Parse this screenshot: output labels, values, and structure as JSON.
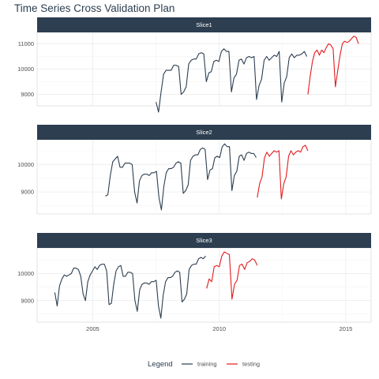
{
  "title": "Time Series Cross Validation Plan",
  "legend": {
    "title": "Legend",
    "items": [
      "training",
      "testing"
    ]
  },
  "colors": {
    "training": "#2c3e50",
    "testing": "#e31a1c",
    "strip": "#2c3e50",
    "grid": "#ebebeb"
  },
  "chart_data": [
    {
      "type": "line",
      "panel": "Slice1",
      "xlim": [
        2002.8,
        2016.0
      ],
      "ylim": [
        8550,
        11450
      ],
      "yticks": [
        9000,
        10000,
        11000
      ],
      "series": [
        {
          "name": "training",
          "x_start": 2007.5,
          "x_end": 2013.46,
          "values": [
            8700,
            8300,
            9100,
            9800,
            9950,
            9950,
            9950,
            10150,
            10150,
            10100,
            9000,
            9100,
            9300,
            10200,
            10350,
            10400,
            10400,
            10600,
            10650,
            10600,
            9500,
            9850,
            9900,
            10300,
            10350,
            10300,
            10700,
            10800,
            10700,
            10700,
            9100,
            9650,
            9800,
            10350,
            10400,
            10200,
            10450,
            10500,
            10450,
            10500,
            8800,
            9350,
            9600,
            10350,
            10500,
            10350,
            10450,
            10550,
            10500,
            10700,
            8700,
            9450,
            9700,
            10450,
            10600,
            10450,
            10550,
            10550,
            10600,
            10700,
            10500
          ]
        },
        {
          "name": "testing",
          "x_start": 2013.5,
          "x_end": 2015.5,
          "values": [
            9000,
            9700,
            10300,
            10650,
            10750,
            10550,
            10750,
            10650,
            10850,
            11000,
            10950,
            10800,
            9300,
            9950,
            10550,
            11000,
            11100,
            11050,
            11100,
            11200,
            11300,
            11250,
            11000
          ]
        }
      ]
    },
    {
      "type": "line",
      "panel": "Slice2",
      "xlim": [
        2002.8,
        2016.0
      ],
      "ylim": [
        8200,
        10900
      ],
      "yticks": [
        9000,
        10000
      ],
      "series": [
        {
          "name": "training",
          "x_start": 2005.5,
          "x_end": 2011.46,
          "values": [
            8850,
            8900,
            9600,
            10100,
            10200,
            10300,
            9900,
            9900,
            10050,
            10050,
            10050,
            10000,
            9000,
            8600,
            9400,
            9600,
            9650,
            9650,
            9600,
            9700,
            9700,
            9750,
            8800,
            8350,
            9200,
            9700,
            9850,
            9850,
            9900,
            10050,
            10100,
            10050,
            8950,
            9050,
            9250,
            10150,
            10300,
            10350,
            10350,
            10550,
            10600,
            10550,
            9450,
            9800,
            9850,
            10250,
            10300,
            10250,
            10650,
            10750,
            10650,
            10650,
            9050,
            9600,
            9750,
            10300,
            10350,
            10150,
            10400,
            10450,
            10400,
            10400,
            10250
          ]
        },
        {
          "name": "testing",
          "x_start": 2011.5,
          "x_end": 2013.5,
          "values": [
            8800,
            9300,
            9550,
            10250,
            10450,
            10300,
            10400,
            10500,
            10450,
            10500,
            8750,
            9300,
            9550,
            10300,
            10500,
            10350,
            10450,
            10500,
            10450,
            10650,
            10700,
            10500
          ]
        }
      ]
    },
    {
      "type": "line",
      "panel": "Slice3",
      "xlim": [
        2002.8,
        2016.0
      ],
      "ylim": [
        8200,
        10950
      ],
      "yticks": [
        9000,
        10000
      ],
      "series": [
        {
          "name": "training",
          "x_start": 2003.5,
          "x_end": 2009.46,
          "values": [
            9300,
            8800,
            9550,
            9800,
            9950,
            9900,
            9950,
            10000,
            10200,
            10200,
            10150,
            9900,
            9250,
            9000,
            9700,
            9950,
            10100,
            10250,
            10150,
            10300,
            10350,
            10350,
            10100,
            8850,
            8900,
            9600,
            10100,
            10250,
            10300,
            9900,
            9900,
            10050,
            10050,
            10000,
            9000,
            8600,
            9400,
            9600,
            9650,
            9650,
            9600,
            9700,
            9700,
            9750,
            8800,
            8350,
            9200,
            9700,
            9850,
            9850,
            9900,
            10050,
            10100,
            10050,
            8950,
            9050,
            9250,
            10150,
            10300,
            10350,
            10350,
            10550,
            10600,
            10550,
            10650
          ]
        },
        {
          "name": "testing",
          "x_start": 2009.5,
          "x_end": 2011.5,
          "values": [
            9450,
            9800,
            9700,
            10250,
            10300,
            10250,
            10650,
            10800,
            10750,
            10700,
            9050,
            9600,
            9750,
            10300,
            10350,
            10150,
            10400,
            10450,
            10550,
            10500,
            10300
          ]
        }
      ]
    }
  ],
  "x_axis": {
    "ticks": [
      2005,
      2010,
      2015
    ]
  }
}
